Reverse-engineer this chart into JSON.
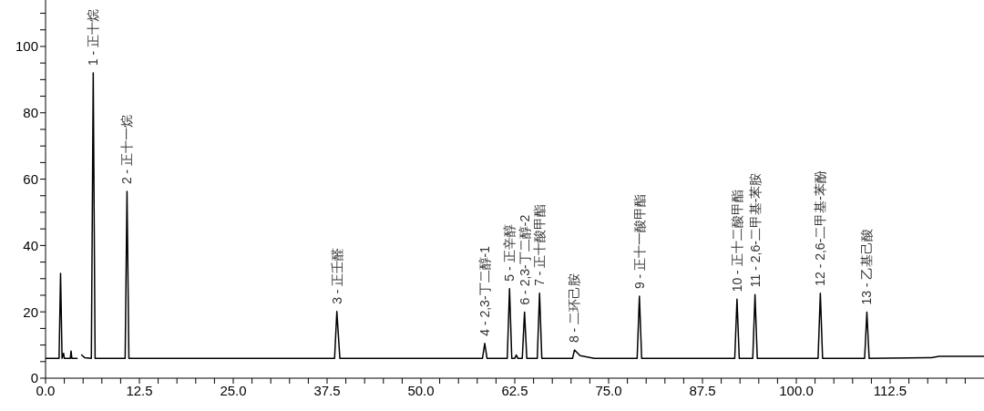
{
  "chart_data": {
    "type": "line",
    "marker": "none",
    "x": [
      0,
      1.8,
      2.0,
      2.2,
      2.4,
      2.5,
      3.3,
      3.4,
      3.5,
      4.2,
      4.3,
      4.6,
      4.8,
      5.2,
      6.1,
      6.35,
      6.6,
      10.6,
      10.85,
      11.1,
      38.5,
      38.8,
      39.2,
      58.2,
      58.5,
      58.8,
      61.5,
      61.8,
      62.1,
      62.5,
      62.7,
      62.9,
      63.5,
      63.8,
      64.1,
      65.5,
      65.8,
      66.1,
      70.2,
      70.45,
      71.2,
      73.1,
      78.8,
      79.1,
      79.4,
      91.8,
      92.1,
      92.4,
      94.2,
      94.5,
      94.8,
      102.9,
      103.2,
      103.5,
      109.1,
      109.4,
      109.7,
      118,
      119,
      125
    ],
    "series": [
      {
        "color": "#000000",
        "values": [
          6,
          6,
          31.6,
          6,
          7.5,
          6,
          6,
          8.2,
          6,
          6,
          null,
          null,
          7,
          6.2,
          6,
          92,
          6,
          6,
          56.3,
          6,
          6,
          20.1,
          6,
          6,
          10.5,
          6,
          6,
          27,
          6,
          6,
          7,
          6,
          6,
          19.9,
          6,
          6,
          25.6,
          6,
          6,
          8.5,
          6.8,
          6,
          6,
          24.7,
          6,
          6,
          23.8,
          6,
          6,
          25.2,
          6,
          6,
          25.6,
          6,
          6,
          19.9,
          6,
          6.2,
          6.6,
          6.6
        ]
      }
    ],
    "xlim": [
      0,
      125
    ],
    "xticks": [
      {
        "value": 0,
        "label": "0.0"
      },
      {
        "value": 2.5,
        "label": null
      },
      {
        "value": 5,
        "label": null
      },
      {
        "value": 7.5,
        "label": null
      },
      {
        "value": 10,
        "label": null
      },
      {
        "value": 12.5,
        "label": "12.5"
      },
      {
        "value": 15,
        "label": null
      },
      {
        "value": 17.5,
        "label": null
      },
      {
        "value": 20,
        "label": null
      },
      {
        "value": 22.5,
        "label": null
      },
      {
        "value": 25,
        "label": "25.0"
      },
      {
        "value": 27.5,
        "label": null
      },
      {
        "value": 30,
        "label": null
      },
      {
        "value": 32.5,
        "label": null
      },
      {
        "value": 35,
        "label": null
      },
      {
        "value": 37.5,
        "label": "37.5"
      },
      {
        "value": 40,
        "label": null
      },
      {
        "value": 42.5,
        "label": null
      },
      {
        "value": 45,
        "label": null
      },
      {
        "value": 47.5,
        "label": null
      },
      {
        "value": 50,
        "label": "50.0"
      },
      {
        "value": 52.5,
        "label": null
      },
      {
        "value": 55,
        "label": null
      },
      {
        "value": 57.5,
        "label": null
      },
      {
        "value": 60,
        "label": null
      },
      {
        "value": 62.5,
        "label": "62.5"
      },
      {
        "value": 65,
        "label": null
      },
      {
        "value": 67.5,
        "label": null
      },
      {
        "value": 70,
        "label": null
      },
      {
        "value": 72.5,
        "label": null
      },
      {
        "value": 75,
        "label": "75.0"
      },
      {
        "value": 77.5,
        "label": null
      },
      {
        "value": 80,
        "label": null
      },
      {
        "value": 82.5,
        "label": null
      },
      {
        "value": 85,
        "label": null
      },
      {
        "value": 87.5,
        "label": "87.5"
      },
      {
        "value": 90,
        "label": null
      },
      {
        "value": 92.5,
        "label": null
      },
      {
        "value": 95,
        "label": null
      },
      {
        "value": 97.5,
        "label": null
      },
      {
        "value": 100,
        "label": "100.0"
      },
      {
        "value": 102.5,
        "label": null
      },
      {
        "value": 105,
        "label": null
      },
      {
        "value": 107.5,
        "label": null
      },
      {
        "value": 110,
        "label": null
      },
      {
        "value": 112.5,
        "label": "112.5"
      },
      {
        "value": 115,
        "label": null
      },
      {
        "value": 117.5,
        "label": null
      },
      {
        "value": 120,
        "label": null
      },
      {
        "value": 122.5,
        "label": null
      }
    ],
    "ylim": [
      0,
      114
    ],
    "yticks": [
      0,
      {
        "value": 5,
        "label": null
      },
      {
        "value": 10,
        "label": null
      },
      {
        "value": 15,
        "label": null
      },
      20,
      {
        "value": 25,
        "label": null
      },
      {
        "value": 30,
        "label": null
      },
      {
        "value": 35,
        "label": null
      },
      40,
      {
        "value": 45,
        "label": null
      },
      {
        "value": 50,
        "label": null
      },
      {
        "value": 55,
        "label": null
      },
      60,
      {
        "value": 65,
        "label": null
      },
      {
        "value": 70,
        "label": null
      },
      {
        "value": 75,
        "label": null
      },
      80,
      {
        "value": 85,
        "label": null
      },
      {
        "value": 90,
        "label": null
      },
      {
        "value": 95,
        "label": null
      },
      100,
      {
        "value": 105,
        "label": null
      },
      {
        "value": 110,
        "label": null
      }
    ],
    "annotations": [
      {
        "text": "1 - 正十烷",
        "x": 6.35,
        "y": 92
      },
      {
        "text": "2 - 正十一烷",
        "x": 10.85,
        "y": 56.3
      },
      {
        "text": "3 - 正壬醛",
        "x": 38.8,
        "y": 20.1
      },
      {
        "text": "4 - 2,3-丁二醇-1",
        "x": 58.5,
        "y": 10.5
      },
      {
        "text": "5 - 正辛醇",
        "x": 61.8,
        "y": 27
      },
      {
        "text": "6 - 2,3-丁二醇-2",
        "x": 63.8,
        "y": 19.9
      },
      {
        "text": "7 - 正十酸甲酯",
        "x": 65.8,
        "y": 25.6
      },
      {
        "text": "8 - 二环己胺",
        "x": 70.45,
        "y": 8.5
      },
      {
        "text": "9 - 正十一酸甲酯",
        "x": 79.1,
        "y": 24.7
      },
      {
        "text": "10 - 正十二酸甲酯",
        "x": 92.1,
        "y": 23.8
      },
      {
        "text": "11 - 2,6-二甲基-苯胺",
        "x": 94.5,
        "y": 25.2
      },
      {
        "text": "12 - 2,6-二甲基-苯酚",
        "x": 103.2,
        "y": 25.6
      },
      {
        "text": "13 - 乙基己酸",
        "x": 109.4,
        "y": 19.9
      }
    ]
  }
}
